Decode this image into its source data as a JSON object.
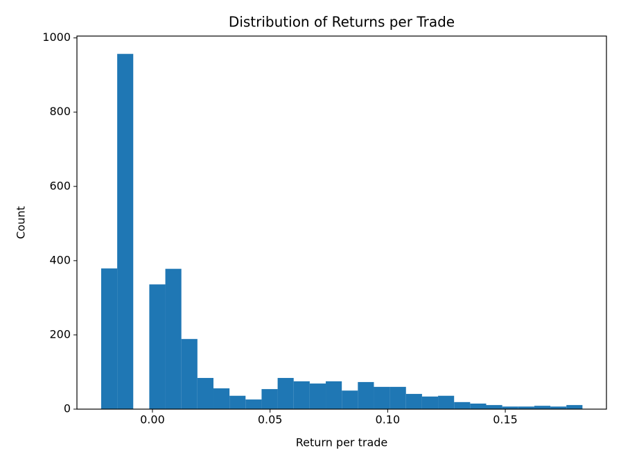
{
  "chart_data": {
    "type": "histogram",
    "title": "Distribution of Returns per Trade",
    "x_label": "Return per trade",
    "y_label": "Count",
    "color": "#1f77b4",
    "bins": [
      -0.0218,
      -0.01498,
      -0.00816,
      -0.00134,
      0.00548,
      0.0123,
      0.01912,
      0.02594,
      0.03276,
      0.03958,
      0.0464,
      0.05322,
      0.06004,
      0.06686,
      0.07368,
      0.0805,
      0.08732,
      0.09414,
      0.10096,
      0.10778,
      0.1146,
      0.12142,
      0.12824,
      0.13506,
      0.14188,
      0.1487,
      0.15552,
      0.16234,
      0.16916,
      0.17598,
      0.1828
    ],
    "values": [
      379,
      957,
      0,
      336,
      378,
      189,
      84,
      56,
      36,
      26,
      54,
      84,
      75,
      69,
      75,
      50,
      73,
      60,
      60,
      41,
      34,
      36,
      19,
      15,
      11,
      7,
      7,
      9,
      7,
      11
    ],
    "xlim": [
      -0.0321,
      0.193
    ],
    "xticks": [
      {
        "value": 0,
        "label": "0.00"
      },
      0.05,
      {
        "value": 0.1,
        "label": "0.10"
      },
      0.15
    ],
    "ylim": [
      0,
      1005
    ],
    "yticks": [
      0,
      200,
      400,
      600,
      800,
      1000
    ]
  }
}
